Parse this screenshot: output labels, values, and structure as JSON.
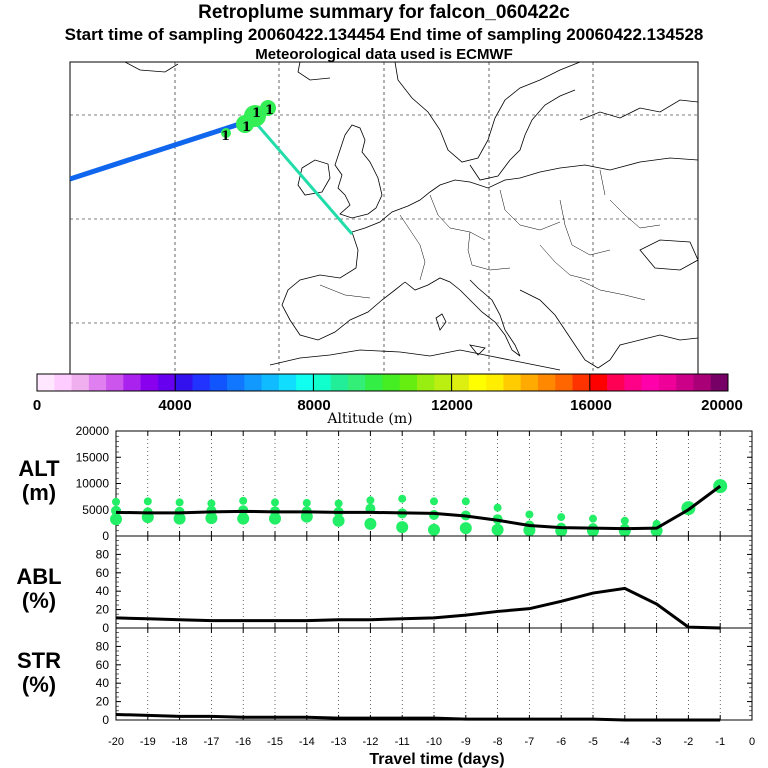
{
  "header": {
    "title": "Retroplume summary for falcon_060422c",
    "subtitle": "Start time of sampling 20060422.134454     End time of sampling 20060422.134528",
    "met": "Meteorological data used is ECMWF"
  },
  "colorbar": {
    "label": "Altitude (m)",
    "tick_labels": [
      "0",
      "4000",
      "8000",
      "12000",
      "16000",
      "20000"
    ],
    "range": [
      0,
      20000
    ],
    "colors": [
      "#ffe8ff",
      "#ffccff",
      "#f0b0f0",
      "#e080f0",
      "#cc55ee",
      "#aa22ee",
      "#8800ee",
      "#6600ee",
      "#3311ee",
      "#2233ff",
      "#1155ff",
      "#1177ff",
      "#1199ff",
      "#11bbff",
      "#11ddff",
      "#11ffee",
      "#11ffcc",
      "#22ee99",
      "#33ee77",
      "#33ee44",
      "#44ee22",
      "#66ee11",
      "#99ee11",
      "#bbee11",
      "#ddee11",
      "#ffff00",
      "#ffee00",
      "#ffcc00",
      "#ffaa00",
      "#ff8800",
      "#ff6600",
      "#ff3300",
      "#ff0000",
      "#ff0055",
      "#ff0088",
      "#ff00aa",
      "#ee0099",
      "#cc0088",
      "#aa0077",
      "#770066"
    ]
  },
  "map": {
    "markers": [
      "1",
      "1",
      "1",
      "1"
    ]
  },
  "chart_data": [
    {
      "type": "line",
      "title": "ALT (m)",
      "ylabel_line1": "ALT",
      "ylabel_line2": "(m)",
      "ylim": [
        0,
        20000
      ],
      "yticks": [
        "0",
        "5000",
        "10000",
        "15000",
        "20000"
      ],
      "x": [
        -20,
        -19,
        -18,
        -17,
        -16,
        -15,
        -14,
        -13,
        -12,
        -11,
        -10,
        -9,
        -8,
        -7,
        -6,
        -5,
        -4,
        -3,
        -2,
        -1
      ],
      "values": [
        4500,
        4400,
        4400,
        4600,
        4700,
        4600,
        4600,
        4500,
        4500,
        4400,
        4300,
        3800,
        3000,
        2000,
        1600,
        1500,
        1400,
        1500,
        5000,
        9500
      ],
      "scatter_color": "#22ee66",
      "scatter": [
        {
          "x": -20,
          "y": 6500
        },
        {
          "x": -20,
          "y": 4800
        },
        {
          "x": -20,
          "y": 3200
        },
        {
          "x": -19,
          "y": 6600
        },
        {
          "x": -19,
          "y": 4500
        },
        {
          "x": -19,
          "y": 3600
        },
        {
          "x": -18,
          "y": 6400
        },
        {
          "x": -18,
          "y": 4600
        },
        {
          "x": -18,
          "y": 3300
        },
        {
          "x": -17,
          "y": 6200
        },
        {
          "x": -17,
          "y": 4800
        },
        {
          "x": -17,
          "y": 3400
        },
        {
          "x": -16,
          "y": 6700
        },
        {
          "x": -16,
          "y": 4900
        },
        {
          "x": -16,
          "y": 3300
        },
        {
          "x": -15,
          "y": 6400
        },
        {
          "x": -15,
          "y": 4700
        },
        {
          "x": -15,
          "y": 3300
        },
        {
          "x": -14,
          "y": 6300
        },
        {
          "x": -14,
          "y": 4700
        },
        {
          "x": -14,
          "y": 3700
        },
        {
          "x": -13,
          "y": 6200
        },
        {
          "x": -13,
          "y": 4600
        },
        {
          "x": -13,
          "y": 2900
        },
        {
          "x": -12,
          "y": 6800
        },
        {
          "x": -12,
          "y": 5200
        },
        {
          "x": -12,
          "y": 2300
        },
        {
          "x": -11,
          "y": 7100
        },
        {
          "x": -11,
          "y": 4300
        },
        {
          "x": -11,
          "y": 1700
        },
        {
          "x": -10,
          "y": 6600
        },
        {
          "x": -10,
          "y": 4000
        },
        {
          "x": -10,
          "y": 1200
        },
        {
          "x": -9,
          "y": 6600
        },
        {
          "x": -9,
          "y": 3900
        },
        {
          "x": -9,
          "y": 1500
        },
        {
          "x": -8,
          "y": 5400
        },
        {
          "x": -8,
          "y": 3200
        },
        {
          "x": -8,
          "y": 1200
        },
        {
          "x": -7,
          "y": 4100
        },
        {
          "x": -7,
          "y": 2000
        },
        {
          "x": -7,
          "y": 1100
        },
        {
          "x": -6,
          "y": 3600
        },
        {
          "x": -6,
          "y": 1600
        },
        {
          "x": -6,
          "y": 1000
        },
        {
          "x": -5,
          "y": 3300
        },
        {
          "x": -5,
          "y": 1500
        },
        {
          "x": -5,
          "y": 1000
        },
        {
          "x": -4,
          "y": 2900
        },
        {
          "x": -4,
          "y": 1400
        },
        {
          "x": -4,
          "y": 1000
        },
        {
          "x": -3,
          "y": 2300
        },
        {
          "x": -3,
          "y": 1500
        },
        {
          "x": -3,
          "y": 1000
        },
        {
          "x": -2,
          "y": 5300
        },
        {
          "x": -1,
          "y": 9500
        }
      ]
    },
    {
      "type": "line",
      "title": "ABL (%)",
      "ylabel_line1": "ABL",
      "ylabel_line2": "(%)",
      "ylim": [
        0,
        100
      ],
      "yticks": [
        "0",
        "20",
        "40",
        "60",
        "80"
      ],
      "x": [
        -20,
        -19,
        -18,
        -17,
        -16,
        -15,
        -14,
        -13,
        -12,
        -11,
        -10,
        -9,
        -8,
        -7,
        -6,
        -5,
        -4,
        -3,
        -2,
        -1
      ],
      "values": [
        11,
        10,
        9,
        8,
        8,
        8,
        8,
        9,
        9,
        10,
        11,
        14,
        18,
        21,
        29,
        38,
        43,
        26,
        1,
        0
      ]
    },
    {
      "type": "line",
      "title": "STR (%)",
      "ylabel_line1": "STR",
      "ylabel_line2": "(%)",
      "ylim": [
        0,
        100
      ],
      "yticks": [
        "0",
        "20",
        "40",
        "60",
        "80"
      ],
      "xlabel": "Travel time (days)",
      "xticks": [
        "-20",
        "-19",
        "-18",
        "-17",
        "-16",
        "-15",
        "-14",
        "-13",
        "-12",
        "-11",
        "-10",
        "-9",
        "-8",
        "-7",
        "-6",
        "-5",
        "-4",
        "-3",
        "-2",
        "-1",
        "0"
      ],
      "x": [
        -20,
        -19,
        -18,
        -17,
        -16,
        -15,
        -14,
        -13,
        -12,
        -11,
        -10,
        -9,
        -8,
        -7,
        -6,
        -5,
        -4,
        -3,
        -2,
        -1
      ],
      "values": [
        6,
        5,
        4,
        4,
        3,
        3,
        3,
        2,
        2,
        2,
        2,
        1,
        1,
        1,
        1,
        1,
        0,
        0,
        0,
        0
      ]
    }
  ]
}
